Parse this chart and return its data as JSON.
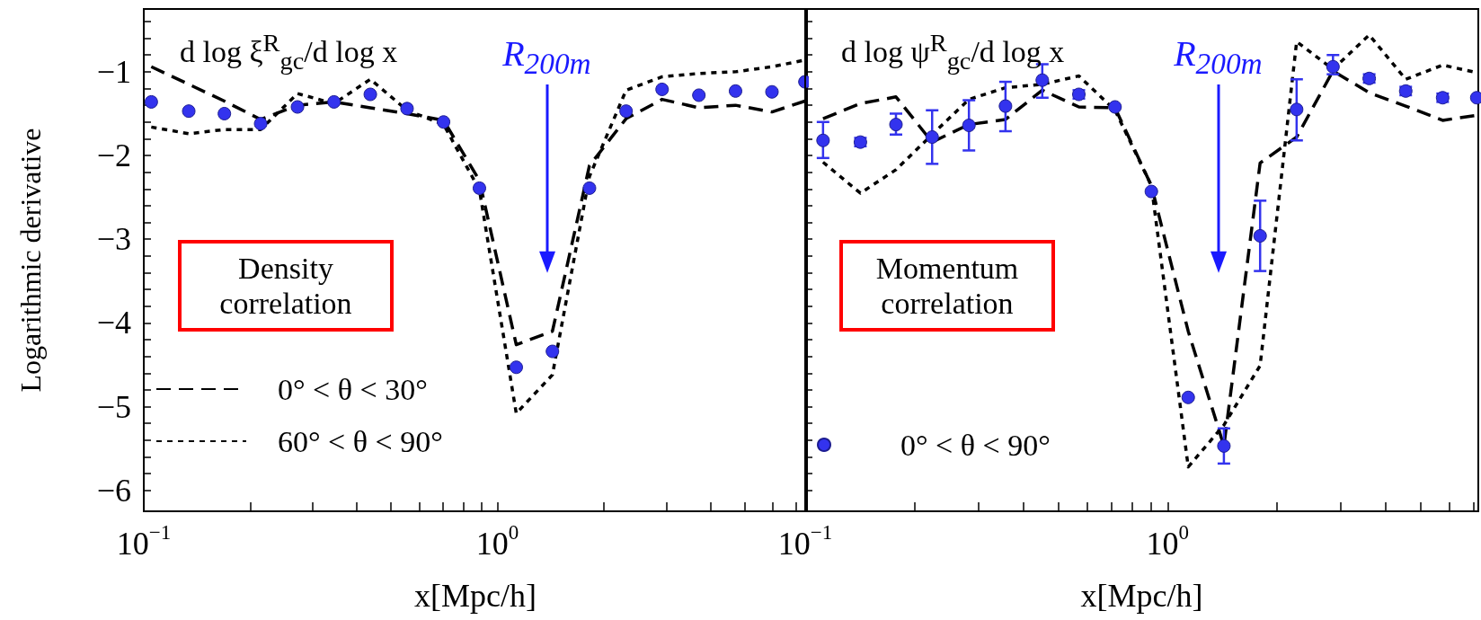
{
  "chart_data": [
    {
      "type": "line",
      "title": "d log ξ$^{R}$$_{gc}$/d log x",
      "xlabel": "x[Mpc/h]",
      "ylabel": "Logarithmic derivative",
      "log": "x",
      "legend": "bottom left",
      "xlim": [
        0.1,
        7.5
      ],
      "ylim": [
        -6.25,
        -0.25
      ],
      "xticks": [
        {
          "value": 0.1,
          "label": "10$^{−1}$"
        },
        {
          "value": 0.2,
          "label": null
        },
        {
          "value": 0.3,
          "label": null
        },
        {
          "value": 0.4,
          "label": null
        },
        {
          "value": 0.5,
          "label": null
        },
        {
          "value": 0.6,
          "label": null
        },
        {
          "value": 0.7,
          "label": null
        },
        {
          "value": 0.8,
          "label": null
        },
        {
          "value": 0.9,
          "label": null
        },
        {
          "value": 1,
          "label": "10$^{0}$"
        },
        {
          "value": 2,
          "label": null
        },
        {
          "value": 3,
          "label": null
        },
        {
          "value": 4,
          "label": null
        },
        {
          "value": 5,
          "label": null
        },
        {
          "value": 6,
          "label": null
        },
        {
          "value": 7,
          "label": null
        }
      ],
      "yticks": [
        {
          "value": -6,
          "label": "−6"
        },
        {
          "value": -5.8,
          "label": null
        },
        {
          "value": -5.6,
          "label": null
        },
        {
          "value": -5.4,
          "label": null
        },
        {
          "value": -5.2,
          "label": null
        },
        {
          "value": -5,
          "label": "−5"
        },
        {
          "value": -4.8,
          "label": null
        },
        {
          "value": -4.6,
          "label": null
        },
        {
          "value": -4.4,
          "label": null
        },
        {
          "value": -4.2,
          "label": null
        },
        {
          "value": -4,
          "label": "−4"
        },
        {
          "value": -3.8,
          "label": null
        },
        {
          "value": -3.6,
          "label": null
        },
        {
          "value": -3.4,
          "label": null
        },
        {
          "value": -3.2,
          "label": null
        },
        {
          "value": -3,
          "label": "−3"
        },
        {
          "value": -2.8,
          "label": null
        },
        {
          "value": -2.6,
          "label": null
        },
        {
          "value": -2.4,
          "label": null
        },
        {
          "value": -2.2,
          "label": null
        },
        {
          "value": -2,
          "label": "−2"
        },
        {
          "value": -1.8,
          "label": null
        },
        {
          "value": -1.6,
          "label": null
        },
        {
          "value": -1.4,
          "label": null
        },
        {
          "value": -1.2,
          "label": null
        },
        {
          "value": -1,
          "label": "−1"
        },
        {
          "value": -0.8,
          "label": null
        },
        {
          "value": -0.6,
          "label": null
        },
        {
          "value": -0.4,
          "label": null
        }
      ],
      "x": [
        0.105,
        0.134,
        0.169,
        0.214,
        0.272,
        0.345,
        0.437,
        0.555,
        0.704,
        0.889,
        1.13,
        1.43,
        1.82,
        2.31,
        2.92,
        3.71,
        4.71,
        5.97,
        7.4
      ],
      "series": [
        {
          "name": "0° < θ < 30°",
          "color": "#000000",
          "line_style": "dashed",
          "marker": "none",
          "values": [
            -0.94,
            -1.15,
            -1.35,
            -1.57,
            -1.4,
            -1.36,
            -1.43,
            -1.5,
            -1.58,
            -2.3,
            -4.26,
            -4.1,
            -2.12,
            -1.56,
            -1.33,
            -1.43,
            -1.4,
            -1.48,
            -1.35
          ]
        },
        {
          "name": "60° < θ < 90°",
          "color": "#000000",
          "line_style": "dotted",
          "marker": "none",
          "values": [
            -1.66,
            -1.74,
            -1.69,
            -1.69,
            -1.26,
            -1.38,
            -1.09,
            -1.46,
            -1.63,
            -2.41,
            -5.08,
            -4.62,
            -2.25,
            -1.22,
            -1.06,
            -1.02,
            -1.0,
            -0.94,
            -0.86
          ]
        },
        {
          "type": "scatter",
          "color": "#3333ee",
          "marker": "circle",
          "values": [
            -1.36,
            -1.47,
            -1.5,
            -1.62,
            -1.42,
            -1.36,
            -1.27,
            -1.44,
            -1.6,
            -2.39,
            -4.53,
            -4.34,
            -2.39,
            -1.47,
            -1.21,
            -1.28,
            -1.23,
            -1.24,
            -1.12
          ]
        }
      ],
      "ref_lines": [
        {
          "axis": "x",
          "value": 1.38,
          "label": "R$_{200m}$",
          "color": "#1a1aff"
        }
      ],
      "annotations": [
        "Density correlation"
      ]
    },
    {
      "type": "line",
      "title": "d log ψ$^{R}$$_{gc}$/d log x",
      "xlabel": "x[Mpc/h]",
      "log": "x",
      "legend": "bottom left",
      "tick_labels": "x",
      "xlim": [
        0.1,
        7.2
      ],
      "ylim": [
        -6.25,
        -0.25
      ],
      "xticks": [
        {
          "value": 0.1,
          "label": "10$^{−1}$"
        },
        {
          "value": 0.2,
          "label": null
        },
        {
          "value": 0.3,
          "label": null
        },
        {
          "value": 0.4,
          "label": null
        },
        {
          "value": 0.5,
          "label": null
        },
        {
          "value": 0.6,
          "label": null
        },
        {
          "value": 0.7,
          "label": null
        },
        {
          "value": 0.8,
          "label": null
        },
        {
          "value": 0.9,
          "label": null
        },
        {
          "value": 1,
          "label": "10$^{0}$"
        },
        {
          "value": 2,
          "label": null
        },
        {
          "value": 3,
          "label": null
        },
        {
          "value": 4,
          "label": null
        },
        {
          "value": 5,
          "label": null
        },
        {
          "value": 6,
          "label": null
        },
        {
          "value": 7,
          "label": null
        }
      ],
      "yticks": [
        {
          "value": -6,
          "label": null
        },
        {
          "value": -5.8,
          "label": null
        },
        {
          "value": -5.6,
          "label": null
        },
        {
          "value": -5.4,
          "label": null
        },
        {
          "value": -5.2,
          "label": null
        },
        {
          "value": -5,
          "label": null
        },
        {
          "value": -4.8,
          "label": null
        },
        {
          "value": -4.6,
          "label": null
        },
        {
          "value": -4.4,
          "label": null
        },
        {
          "value": -4.2,
          "label": null
        },
        {
          "value": -4,
          "label": null
        },
        {
          "value": -3.8,
          "label": null
        },
        {
          "value": -3.6,
          "label": null
        },
        {
          "value": -3.4,
          "label": null
        },
        {
          "value": -3.2,
          "label": null
        },
        {
          "value": -3,
          "label": null
        },
        {
          "value": -2.8,
          "label": null
        },
        {
          "value": -2.6,
          "label": null
        },
        {
          "value": -2.4,
          "label": null
        },
        {
          "value": -2.2,
          "label": null
        },
        {
          "value": -2,
          "label": null
        },
        {
          "value": -1.8,
          "label": null
        },
        {
          "value": -1.6,
          "label": null
        },
        {
          "value": -1.4,
          "label": null
        },
        {
          "value": -1.2,
          "label": null
        },
        {
          "value": -1,
          "label": null
        },
        {
          "value": -0.8,
          "label": null
        },
        {
          "value": -0.6,
          "label": null
        },
        {
          "value": -0.4,
          "label": null
        }
      ],
      "x": [
        0.112,
        0.142,
        0.178,
        0.224,
        0.283,
        0.357,
        0.451,
        0.569,
        0.716,
        0.902,
        1.14,
        1.43,
        1.8,
        2.27,
        2.86,
        3.6,
        4.54,
        5.74,
        7.13
      ],
      "series": [
        {
          "color": "#000000",
          "line_style": "dashed",
          "marker": "none",
          "values": [
            -1.56,
            -1.38,
            -1.3,
            -1.84,
            -1.63,
            -1.57,
            -1.22,
            -1.42,
            -1.43,
            -2.36,
            -4.1,
            -5.47,
            -2.09,
            -1.78,
            -0.99,
            -1.25,
            -1.41,
            -1.58,
            -1.52
          ]
        },
        {
          "color": "#000000",
          "line_style": "dotted",
          "marker": "none",
          "values": [
            -2.08,
            -2.45,
            -2.17,
            -1.75,
            -1.33,
            -1.19,
            -1.15,
            -1.05,
            -1.46,
            -2.36,
            -5.72,
            -5.22,
            -4.51,
            -0.64,
            -0.97,
            -0.56,
            -1.09,
            -0.92,
            -1.01
          ]
        },
        {
          "name": "0° < θ < 90°",
          "type": "scatter",
          "color": "#3333ee",
          "marker": "circle",
          "values": [
            -1.82,
            -1.84,
            -1.63,
            -1.78,
            -1.64,
            -1.41,
            -1.1,
            -1.27,
            -1.42,
            -2.43,
            -4.89,
            -5.47,
            -2.96,
            -1.45,
            -0.94,
            -1.08,
            -1.23,
            -1.31,
            -1.31
          ],
          "errors": [
            [
              -2.03,
              -1.6
            ],
            [
              -1.89,
              -1.79
            ],
            [
              -1.75,
              -1.5
            ],
            [
              -2.1,
              -1.46
            ],
            [
              -1.94,
              -1.34
            ],
            [
              -1.71,
              -1.12
            ],
            [
              -1.31,
              -0.91
            ],
            [
              -1.32,
              -1.22
            ],
            null,
            null,
            null,
            [
              -5.68,
              -5.26
            ],
            [
              -3.38,
              -2.54
            ],
            [
              -1.82,
              -1.09
            ],
            [
              -1.03,
              -0.8
            ],
            [
              -1.13,
              -1.03
            ],
            [
              -1.28,
              -1.18
            ],
            [
              -1.36,
              -1.26
            ],
            null
          ]
        }
      ],
      "ref_lines": [
        {
          "axis": "x",
          "value": 1.38,
          "label": "R$_{200m}$",
          "color": "#1a1aff"
        }
      ],
      "annotations": [
        "Momentum correlation"
      ]
    }
  ]
}
